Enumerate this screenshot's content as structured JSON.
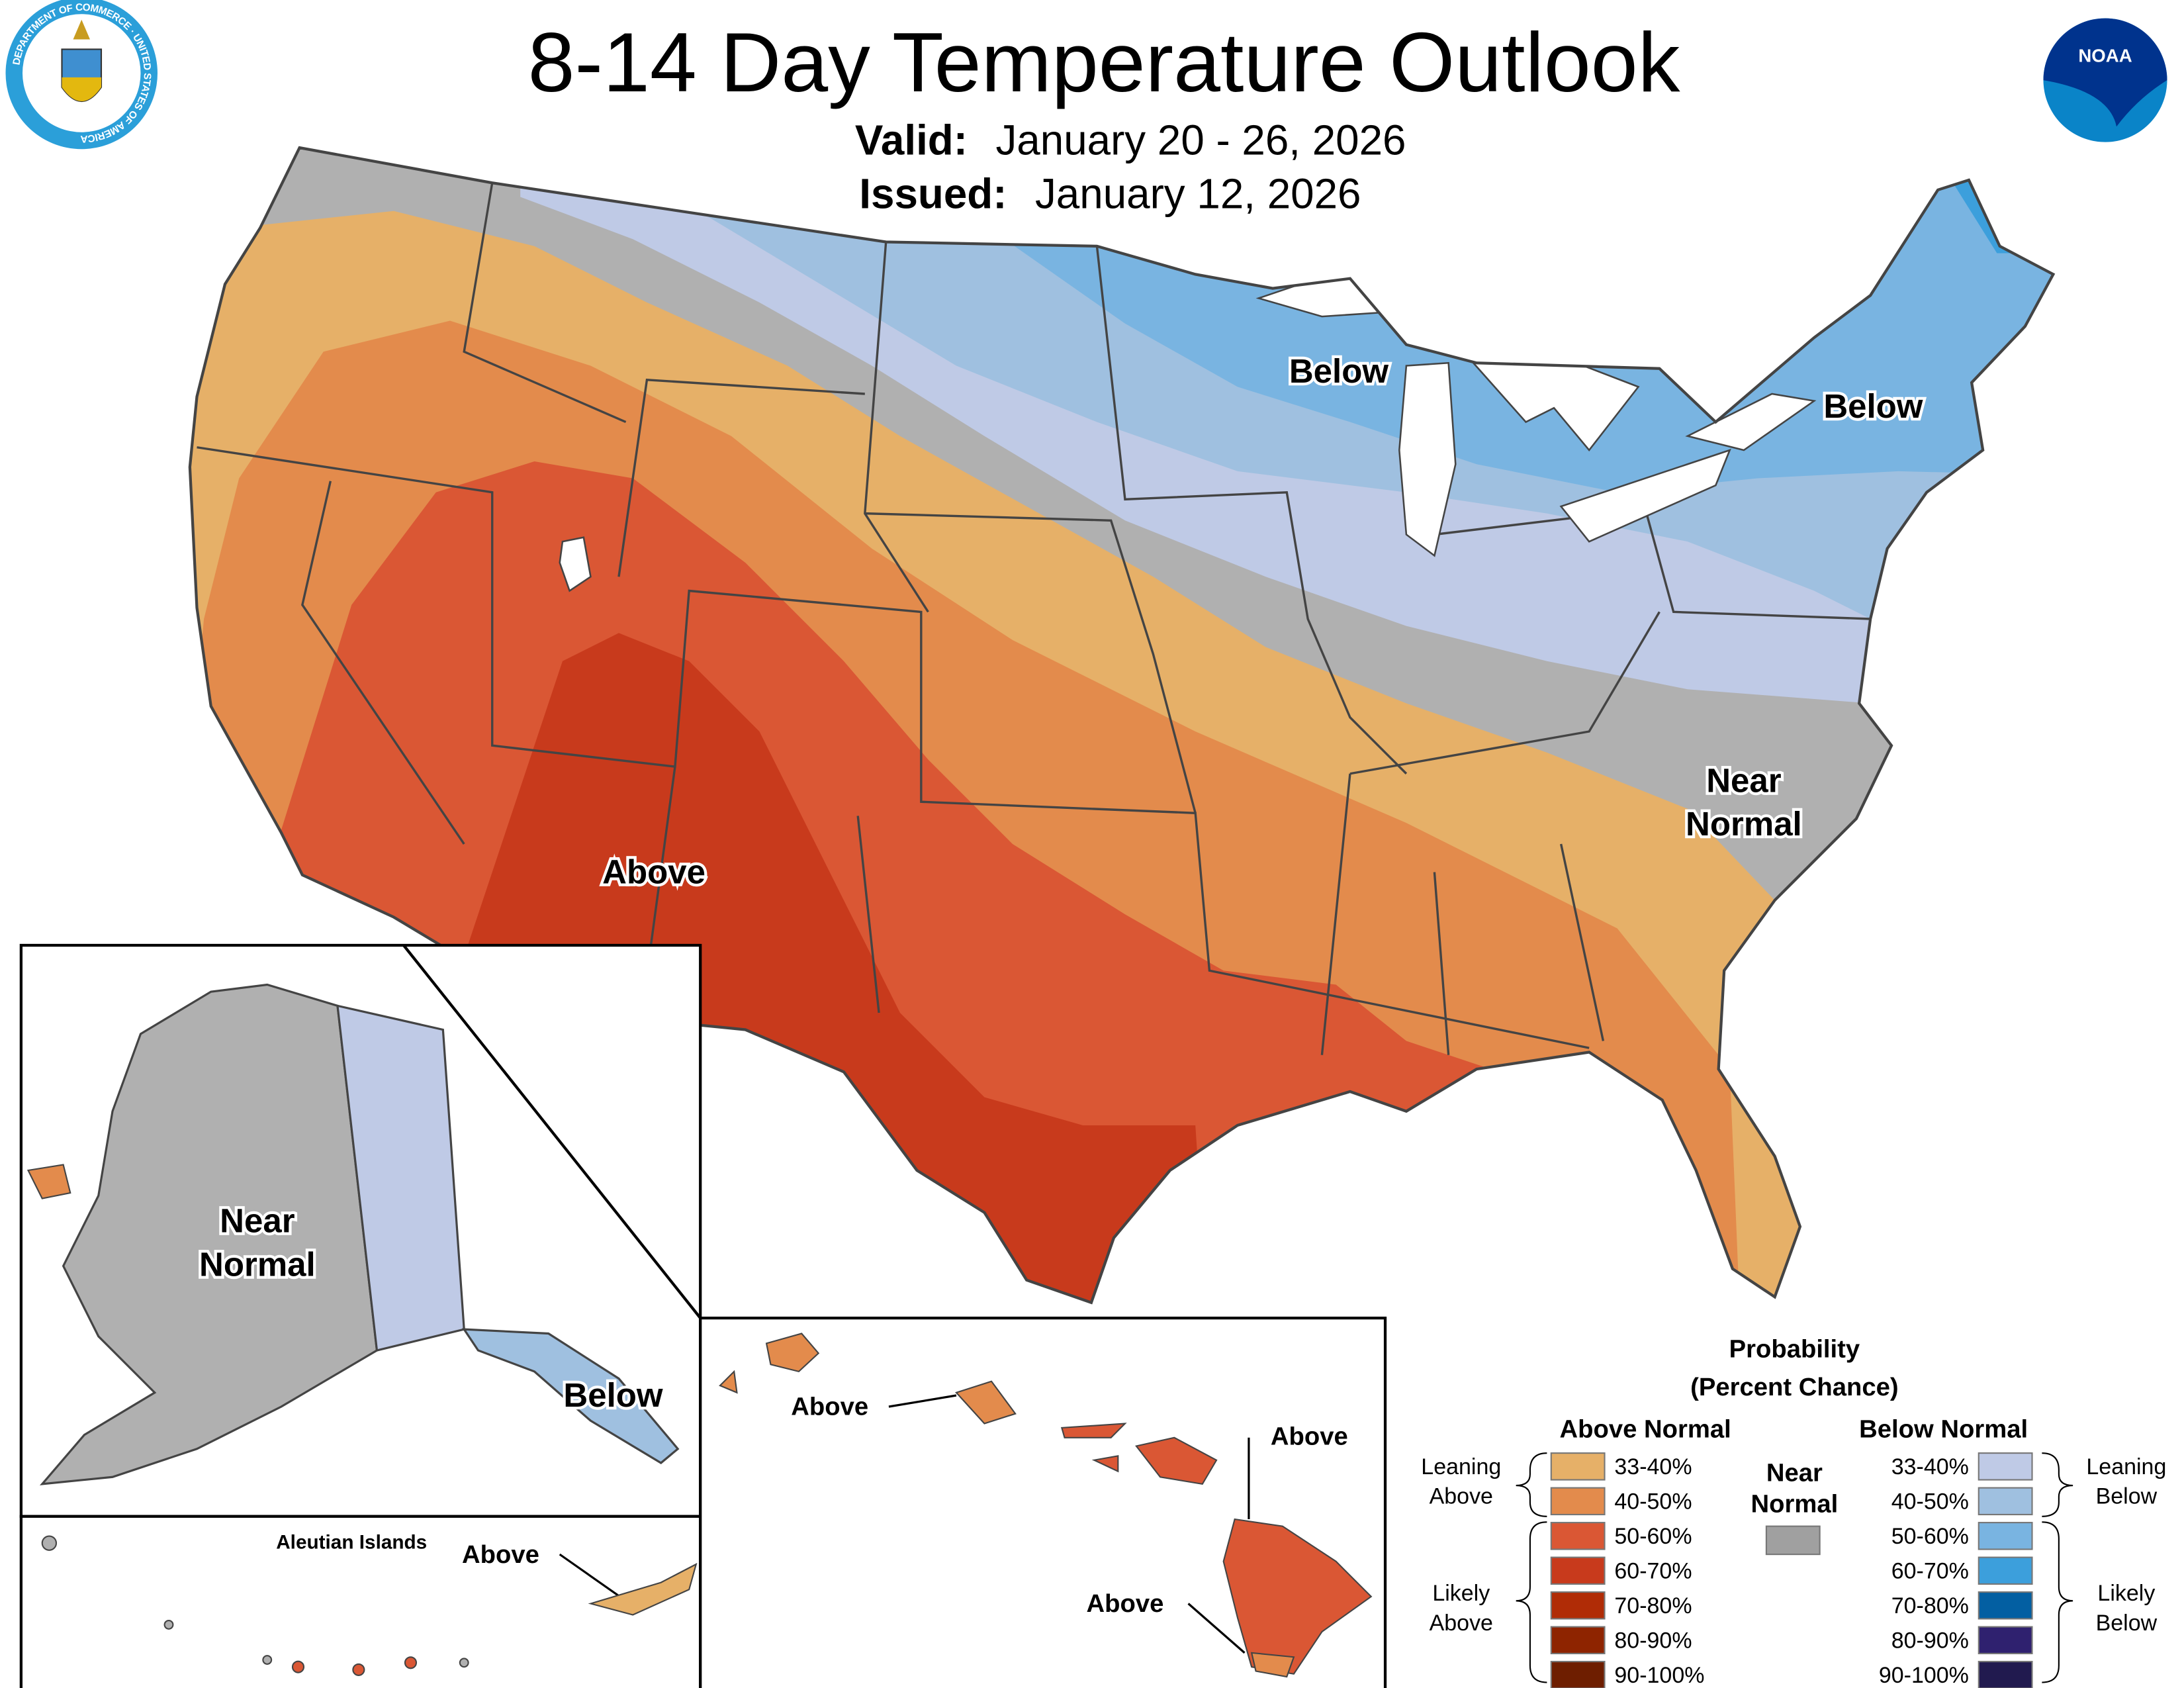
{
  "header": {
    "title": "8-14 Day Temperature Outlook",
    "valid_label": "Valid:",
    "valid_value": "January 20 - 26, 2026",
    "issued_label": "Issued:",
    "issued_value": "January 12, 2026",
    "left_logo": "Department of Commerce seal",
    "left_logo_text": "DEPARTMENT OF COMMERCE · UNITED STATES OF AMERICA",
    "right_logo": "NOAA logo",
    "right_logo_text": "NOAA"
  },
  "map": {
    "conus_labels": {
      "below_midwest": "Below",
      "below_northeast": "Below",
      "near_normal_line1": "Near",
      "near_normal_line2": "Normal",
      "above_southwest": "Above"
    },
    "alaska_labels": {
      "near_normal_line1": "Near",
      "near_normal_line2": "Normal",
      "below": "Below"
    },
    "aleutian": {
      "title": "Aleutian Islands",
      "above": "Above"
    },
    "hawaii_labels": {
      "above_oahu": "Above",
      "above_maui": "Above",
      "above_big_island": "Above"
    }
  },
  "legend": {
    "title_line1": "Probability",
    "title_line2": "(Percent Chance)",
    "above_header": "Above Normal",
    "below_header": "Below Normal",
    "near_line1": "Near",
    "near_line2": "Normal",
    "near_color": "#a0a0a0",
    "leaning_above_1": "Leaning",
    "leaning_above_2": "Above",
    "likely_above_1": "Likely",
    "likely_above_2": "Above",
    "leaning_below_1": "Leaning",
    "leaning_below_2": "Below",
    "likely_below_1": "Likely",
    "likely_below_2": "Below",
    "above": [
      {
        "range": "33-40%",
        "color": "#e6b068"
      },
      {
        "range": "40-50%",
        "color": "#e38b4c"
      },
      {
        "range": "50-60%",
        "color": "#da5734"
      },
      {
        "range": "60-70%",
        "color": "#c83a1c"
      },
      {
        "range": "70-80%",
        "color": "#b02c06"
      },
      {
        "range": "80-90%",
        "color": "#8e2400"
      },
      {
        "range": "90-100%",
        "color": "#6e1e00"
      }
    ],
    "below": [
      {
        "range": "33-40%",
        "color": "#bfcae6"
      },
      {
        "range": "40-50%",
        "color": "#9fc0e0"
      },
      {
        "range": "50-60%",
        "color": "#79b4e1"
      },
      {
        "range": "60-70%",
        "color": "#3c9fdc"
      },
      {
        "range": "70-80%",
        "color": "#035fa2"
      },
      {
        "range": "80-90%",
        "color": "#2f216f"
      },
      {
        "range": "90-100%",
        "color": "#211a4f"
      }
    ]
  }
}
